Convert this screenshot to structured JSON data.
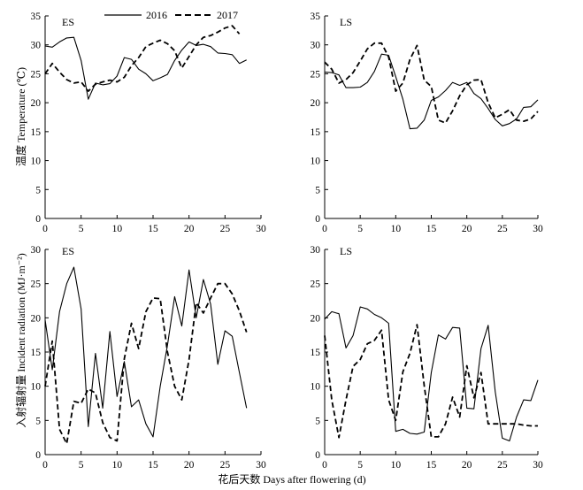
{
  "figure": {
    "legend": {
      "series_2016": "2016",
      "series_2017": "2017"
    },
    "y_label_top": "温度 Temperature (℃)",
    "y_label_bottom": "入射辐射量 Incident radiation (MJ·m⁻²)",
    "x_label": "花后天数 Days after flowering (d)"
  },
  "chart_data": [
    {
      "type": "line",
      "panel_label": "ES",
      "xlim": [
        0,
        30
      ],
      "ylim": [
        0,
        35
      ],
      "xticks": [
        0,
        5,
        10,
        15,
        20,
        25,
        30
      ],
      "yticks": [
        0,
        5,
        10,
        15,
        20,
        25,
        30,
        35
      ],
      "series": [
        {
          "name": "2016",
          "style": "solid",
          "x": [
            0,
            1,
            2,
            3,
            4,
            5,
            6,
            7,
            8,
            9,
            10,
            11,
            12,
            13,
            14,
            15,
            16,
            17,
            18,
            19,
            20,
            21,
            22,
            23,
            24,
            25,
            26,
            27,
            28
          ],
          "y": [
            29.8,
            29.6,
            30.5,
            31.2,
            31.3,
            27.3,
            20.6,
            23.4,
            23.1,
            23.3,
            24.6,
            27.8,
            27.5,
            25.8,
            25.0,
            23.8,
            24.3,
            24.9,
            27.3,
            29.1,
            30.5,
            29.9,
            30.1,
            29.7,
            28.6,
            28.5,
            28.3,
            26.8,
            27.4
          ]
        },
        {
          "name": "2017",
          "style": "dashed",
          "x": [
            0,
            1,
            2,
            3,
            4,
            5,
            6,
            7,
            8,
            9,
            10,
            11,
            12,
            13,
            14,
            15,
            16,
            17,
            18,
            19,
            20,
            21,
            22,
            23,
            24,
            25,
            26,
            27
          ],
          "y": [
            25.0,
            26.8,
            25.3,
            24.0,
            23.4,
            23.6,
            22.0,
            23.2,
            23.6,
            23.9,
            23.6,
            24.4,
            26.4,
            27.8,
            29.7,
            30.3,
            30.8,
            30.2,
            29.0,
            26.0,
            28.0,
            30.0,
            31.3,
            31.6,
            32.2,
            32.9,
            33.3,
            31.9
          ]
        }
      ]
    },
    {
      "type": "line",
      "panel_label": "LS",
      "xlim": [
        0,
        30
      ],
      "ylim": [
        0,
        35
      ],
      "xticks": [
        0,
        5,
        10,
        15,
        20,
        25,
        30
      ],
      "yticks": [
        0,
        5,
        10,
        15,
        20,
        25,
        30,
        35
      ],
      "series": [
        {
          "name": "2016",
          "style": "solid",
          "x": [
            0,
            1,
            2,
            3,
            4,
            5,
            6,
            7,
            8,
            9,
            10,
            11,
            12,
            13,
            14,
            15,
            16,
            17,
            18,
            19,
            20,
            21,
            22,
            23,
            24,
            25,
            26,
            27,
            28,
            29,
            30
          ],
          "y": [
            25.3,
            25.2,
            24.8,
            22.6,
            22.6,
            22.7,
            23.5,
            25.4,
            28.4,
            28.2,
            24.5,
            20.6,
            15.5,
            15.6,
            17.0,
            20.4,
            21.0,
            22.1,
            23.5,
            23.0,
            23.5,
            21.6,
            20.7,
            19.0,
            17.1,
            16.0,
            16.4,
            17.2,
            19.2,
            19.3,
            20.5
          ]
        },
        {
          "name": "2017",
          "style": "dashed",
          "x": [
            0,
            1,
            2,
            3,
            4,
            5,
            6,
            7,
            8,
            9,
            10,
            11,
            12,
            13,
            14,
            15,
            16,
            17,
            18,
            19,
            20,
            21,
            22,
            23,
            24,
            25,
            26,
            27,
            28,
            29,
            30
          ],
          "y": [
            27.0,
            25.8,
            23.4,
            24.0,
            25.2,
            27.2,
            29.3,
            30.3,
            30.3,
            27.9,
            22.0,
            23.4,
            27.5,
            29.9,
            23.9,
            22.8,
            17.0,
            16.5,
            18.6,
            21.2,
            23.1,
            23.9,
            24.0,
            20.0,
            17.4,
            18.0,
            18.8,
            17.0,
            16.8,
            17.2,
            18.5
          ]
        }
      ]
    },
    {
      "type": "line",
      "panel_label": "ES",
      "xlim": [
        0,
        30
      ],
      "ylim": [
        0,
        30
      ],
      "xticks": [
        0,
        5,
        10,
        15,
        20,
        25,
        30
      ],
      "yticks": [
        0,
        5,
        10,
        15,
        20,
        25,
        30
      ],
      "series": [
        {
          "name": "2016",
          "style": "solid",
          "x": [
            0,
            1,
            2,
            3,
            4,
            5,
            6,
            7,
            8,
            9,
            10,
            11,
            12,
            13,
            14,
            15,
            16,
            17,
            18,
            19,
            20,
            21,
            22,
            23,
            24,
            25,
            26,
            27,
            28
          ],
          "y": [
            19.7,
            12.4,
            20.9,
            25.0,
            27.4,
            21.3,
            4.1,
            14.8,
            6.8,
            18.0,
            8.5,
            13.6,
            7.0,
            8.0,
            4.5,
            2.6,
            10.0,
            16.0,
            23.1,
            18.8,
            27.0,
            20.0,
            25.6,
            22.0,
            13.2,
            18.1,
            17.3,
            12.0,
            6.8
          ]
        },
        {
          "name": "2017",
          "style": "dashed",
          "x": [
            0,
            1,
            2,
            3,
            4,
            5,
            6,
            7,
            8,
            9,
            10,
            11,
            12,
            13,
            14,
            15,
            16,
            17,
            18,
            19,
            20,
            21,
            22,
            23,
            24,
            25,
            26,
            27,
            28
          ],
          "y": [
            10.0,
            16.6,
            3.7,
            1.6,
            7.8,
            7.5,
            9.6,
            9.0,
            4.7,
            2.5,
            2.0,
            14.0,
            19.2,
            15.5,
            20.9,
            22.9,
            22.8,
            15.0,
            10.0,
            8.0,
            13.9,
            22.2,
            20.7,
            22.9,
            25.0,
            25.0,
            23.5,
            21.0,
            17.9
          ]
        }
      ]
    },
    {
      "type": "line",
      "panel_label": "LS",
      "xlim": [
        0,
        30
      ],
      "ylim": [
        0,
        30
      ],
      "xticks": [
        0,
        5,
        10,
        15,
        20,
        25,
        30
      ],
      "yticks": [
        0,
        5,
        10,
        15,
        20,
        25,
        30
      ],
      "series": [
        {
          "name": "2016",
          "style": "solid",
          "x": [
            0,
            1,
            2,
            3,
            4,
            5,
            6,
            7,
            8,
            9,
            10,
            11,
            12,
            13,
            14,
            15,
            16,
            17,
            18,
            19,
            20,
            21,
            22,
            23,
            24,
            25,
            26,
            27,
            28,
            29,
            30
          ],
          "y": [
            19.8,
            20.9,
            20.6,
            15.6,
            17.4,
            21.6,
            21.3,
            20.5,
            20.0,
            19.2,
            3.4,
            3.7,
            3.1,
            3.0,
            3.3,
            12.0,
            17.5,
            16.9,
            18.6,
            18.5,
            6.8,
            6.7,
            15.5,
            18.9,
            9.2,
            2.4,
            2.0,
            5.5,
            8.0,
            7.9,
            10.9
          ]
        },
        {
          "name": "2017",
          "style": "dashed",
          "x": [
            0,
            1,
            2,
            3,
            4,
            5,
            6,
            7,
            8,
            9,
            10,
            11,
            12,
            13,
            14,
            15,
            16,
            17,
            18,
            19,
            20,
            21,
            22,
            23,
            24,
            25,
            26,
            27,
            28,
            29,
            30
          ],
          "y": [
            17.4,
            8.0,
            2.5,
            8.0,
            12.9,
            13.9,
            16.2,
            16.7,
            18.2,
            8.0,
            5.0,
            12.1,
            14.8,
            19.0,
            10.1,
            2.6,
            2.6,
            4.5,
            8.4,
            5.5,
            13.0,
            8.3,
            12.0,
            4.5,
            4.5,
            4.5,
            4.5,
            4.5,
            4.3,
            4.2,
            4.2
          ]
        }
      ]
    }
  ]
}
